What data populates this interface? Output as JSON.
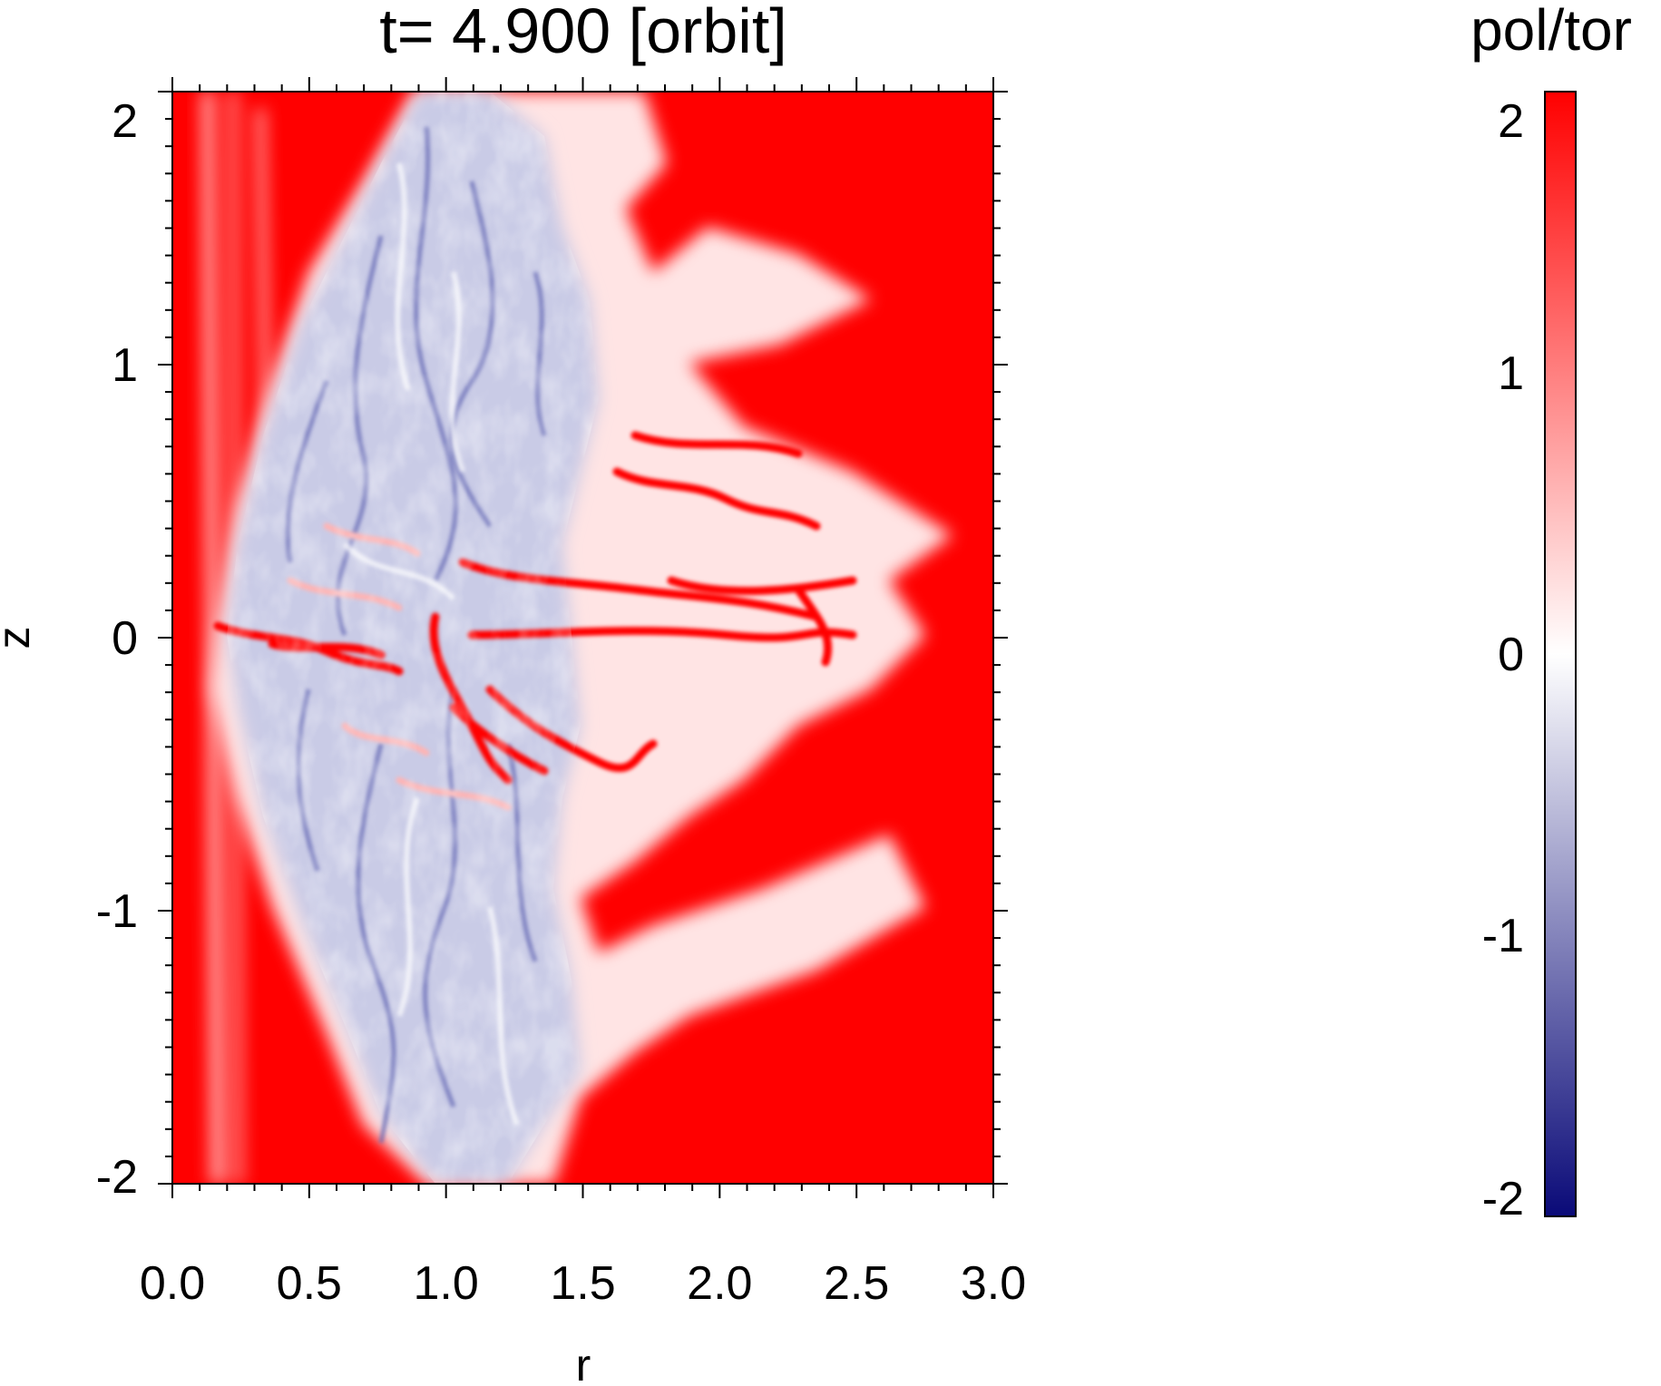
{
  "chart_data": {
    "type": "heatmap",
    "title": "t=  4.900 [orbit]",
    "xlabel": "r",
    "ylabel": "z",
    "xlim": [
      0.0,
      3.0
    ],
    "ylim": [
      -2.0,
      2.0
    ],
    "x_ticks": [
      "0.0",
      "0.5",
      "1.0",
      "1.5",
      "2.0",
      "2.5",
      "3.0"
    ],
    "y_ticks": [
      "2",
      "1",
      "0",
      "-1",
      "-2"
    ],
    "colorbar": {
      "title": "pol/tor",
      "range": [
        -2,
        2
      ],
      "ticks": [
        "2",
        "1",
        "0",
        "-1",
        "-2"
      ],
      "colormap": [
        "#0a0a78",
        "#ffffff",
        "#ff0000"
      ]
    },
    "features": {
      "inner_r_band": [
        0.0,
        0.25
      ],
      "turbulent_lobe_apex_r": 0.15,
      "turbulent_lobe_edge_r_at_z2": 0.9,
      "turbulent_lobe_edge_r_at_zm2": 0.95,
      "turbulent_lobe_outer_r_at_z2": 1.5,
      "turbulent_lobe_outer_r_at_zm2": 1.4,
      "midplane_ridge_extent_r": [
        0.15,
        2.5
      ],
      "background_value": 2
    }
  },
  "colors": {
    "red": "#ff0000",
    "white": "#ffffff",
    "navy": "#0a0a78"
  }
}
